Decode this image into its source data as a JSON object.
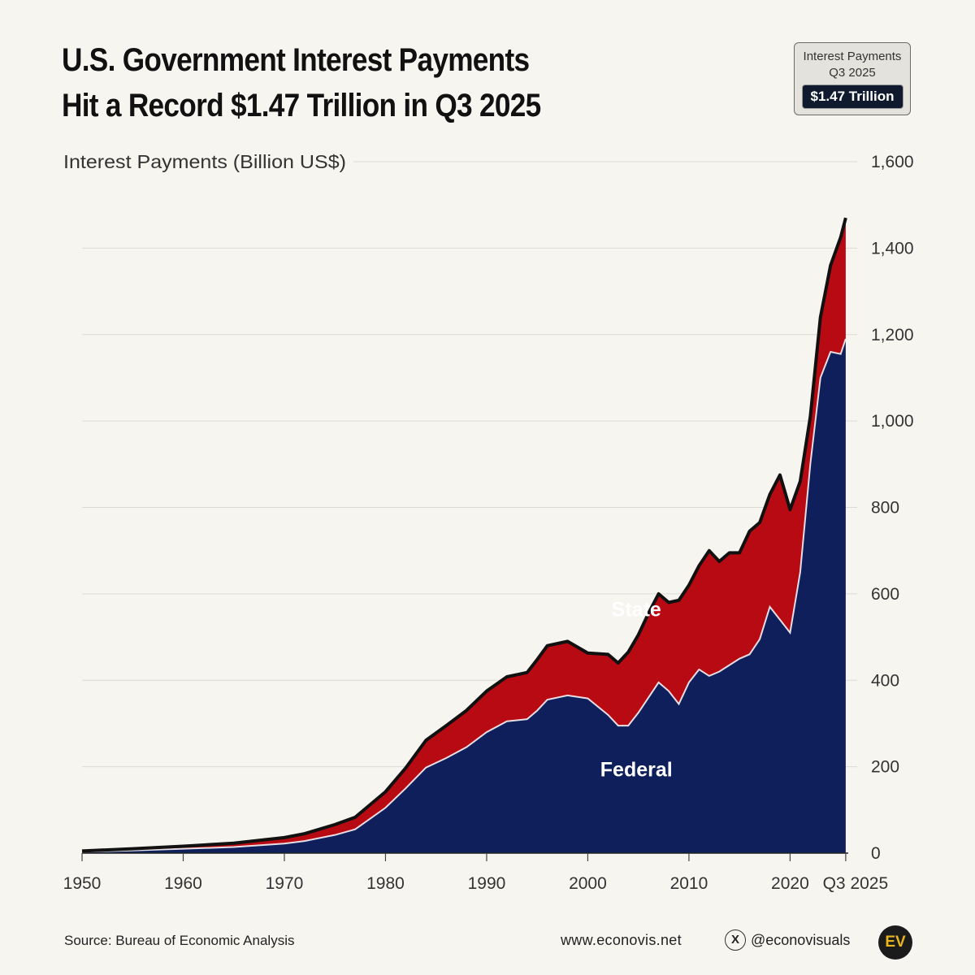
{
  "header": {
    "title_line1": "U.S. Government Interest Payments",
    "title_line2": "Hit a Record $1.47 Trillion in Q3 2025"
  },
  "badge": {
    "label_line1": "Interest Payments",
    "label_line2": "Q3 2025",
    "value": "$1.47 Trillion"
  },
  "footer": {
    "source": "Source: Bureau of Economic Analysis",
    "website": "www.econovis.net",
    "x_icon": "x-logo-icon",
    "handle": "@econovisuals",
    "logo_text": "EV"
  },
  "colors": {
    "federal": "#0e1f5b",
    "state": "#b80a13",
    "total_line": "#111111",
    "background": "#f7f5f0"
  },
  "chart_data": {
    "type": "area",
    "stacked": true,
    "ylabel": "Interest Payments (Billion US$)",
    "ylim": [
      0,
      1600
    ],
    "xlim": [
      1950,
      2025.75
    ],
    "yticks": [
      0,
      200,
      400,
      600,
      800,
      1000,
      1200,
      1400,
      1600
    ],
    "ytick_labels": [
      "0",
      "200",
      "400",
      "600",
      "800",
      "1,000",
      "1,200",
      "1,400",
      "1,600"
    ],
    "xticks": [
      1950,
      1960,
      1970,
      1980,
      1990,
      2000,
      2010,
      2020,
      2025.5
    ],
    "xtick_labels": [
      "1950",
      "1960",
      "1970",
      "1980",
      "1990",
      "2000",
      "2010",
      "2020",
      "Q3 2025"
    ],
    "grid": true,
    "annotations": [
      {
        "text": "State",
        "series": "State",
        "x": 2004,
        "y": 565
      },
      {
        "text": "Federal",
        "series": "Federal",
        "x": 2004,
        "y": 195
      }
    ],
    "x": [
      1950,
      1955,
      1960,
      1965,
      1970,
      1972,
      1975,
      1977,
      1980,
      1982,
      1984,
      1986,
      1988,
      1990,
      1992,
      1994,
      1995,
      1996,
      1998,
      2000,
      2002,
      2003,
      2004,
      2005,
      2006,
      2007,
      2008,
      2009,
      2010,
      2011,
      2012,
      2013,
      2014,
      2015,
      2016,
      2017,
      2018,
      2019,
      2020,
      2021,
      2022,
      2023,
      2024,
      2025,
      2025.5
    ],
    "series": [
      {
        "name": "Federal",
        "values": [
          3,
          6,
          10,
          14,
          22,
          28,
          42,
          55,
          105,
          150,
          198,
          220,
          245,
          280,
          305,
          310,
          330,
          355,
          365,
          358,
          320,
          295,
          295,
          325,
          360,
          395,
          375,
          345,
          395,
          425,
          410,
          420,
          435,
          450,
          460,
          495,
          570,
          540,
          510,
          650,
          900,
          1100,
          1160,
          1155,
          1190
        ]
      },
      {
        "name": "State",
        "values": [
          2,
          4,
          6,
          9,
          14,
          17,
          24,
          28,
          37,
          47,
          63,
          75,
          85,
          95,
          103,
          108,
          118,
          125,
          125,
          105,
          140,
          145,
          170,
          180,
          195,
          205,
          205,
          240,
          225,
          240,
          290,
          255,
          260,
          245,
          285,
          270,
          260,
          335,
          285,
          210,
          110,
          140,
          200,
          270,
          280
        ]
      },
      {
        "name": "Total",
        "values": [
          5,
          10,
          16,
          23,
          36,
          45,
          66,
          83,
          142,
          197,
          261,
          295,
          330,
          375,
          408,
          418,
          448,
          480,
          490,
          463,
          460,
          440,
          465,
          505,
          555,
          600,
          580,
          585,
          620,
          665,
          700,
          675,
          695,
          695,
          745,
          765,
          830,
          875,
          795,
          860,
          1010,
          1240,
          1360,
          1425,
          1470
        ]
      }
    ]
  }
}
